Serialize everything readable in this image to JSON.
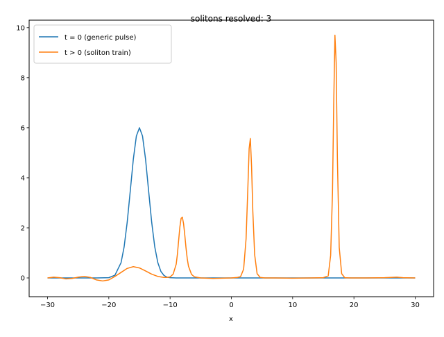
{
  "chart_data": {
    "type": "line",
    "title": "solitons resolved: 3",
    "xlabel": "x",
    "ylabel": "",
    "xlim": [
      -33,
      33
    ],
    "ylim": [
      -0.75,
      10.3
    ],
    "xticks": [
      -30,
      -20,
      -10,
      0,
      10,
      20,
      30
    ],
    "yticks": [
      0,
      2,
      4,
      6,
      8,
      10
    ],
    "grid": false,
    "legend": {
      "position": "top-left"
    },
    "series": [
      {
        "name": "t = 0 (generic pulse)",
        "color": "#1f77b4",
        "x": [
          -30,
          -25,
          -22,
          -20,
          -19,
          -18,
          -17.5,
          -17,
          -16.5,
          -16,
          -15.5,
          -15,
          -14.5,
          -14,
          -13.5,
          -13,
          -12.5,
          -12,
          -11.5,
          -11,
          -10.5,
          -10,
          -9,
          -8,
          -5,
          0,
          10,
          20,
          30
        ],
        "y": [
          0,
          0,
          0,
          0.01,
          0.11,
          0.61,
          1.24,
          2.22,
          3.47,
          4.74,
          5.67,
          6.0,
          5.67,
          4.74,
          3.47,
          2.22,
          1.24,
          0.61,
          0.26,
          0.1,
          0.03,
          0.01,
          0,
          0,
          0,
          0,
          0,
          0,
          0
        ]
      },
      {
        "name": "t > 0 (soliton train)",
        "color": "#ff7f0e",
        "x": [
          -30,
          -29,
          -28,
          -27,
          -26,
          -25,
          -24,
          -23,
          -22,
          -21,
          -20,
          -19,
          -18,
          -17,
          -16,
          -15,
          -14,
          -13,
          -12,
          -11,
          -10.5,
          -10,
          -9.5,
          -9,
          -8.8,
          -8.6,
          -8.4,
          -8.2,
          -8,
          -7.8,
          -7.6,
          -7.4,
          -7.2,
          -7,
          -6.5,
          -6,
          -5,
          -3,
          0,
          1,
          1.5,
          2,
          2.4,
          2.7,
          2.9,
          3.1,
          3.3,
          3.5,
          3.8,
          4.2,
          4.7,
          5.5,
          7,
          10,
          13,
          15,
          15.8,
          16.2,
          16.5,
          16.7,
          16.9,
          17.1,
          17.3,
          17.6,
          18,
          18.5,
          19.5,
          22,
          25,
          27,
          28,
          30
        ],
        "y": [
          0,
          0.03,
          0.01,
          -0.04,
          -0.02,
          0.03,
          0.06,
          0.02,
          -0.08,
          -0.12,
          -0.08,
          0.06,
          0.22,
          0.38,
          0.45,
          0.4,
          0.28,
          0.15,
          0.06,
          0.02,
          0.02,
          0.04,
          0.15,
          0.55,
          0.96,
          1.51,
          2.04,
          2.38,
          2.43,
          2.17,
          1.71,
          1.2,
          0.77,
          0.47,
          0.14,
          0.04,
          0,
          -0.02,
          0,
          0.02,
          0.05,
          0.35,
          1.56,
          3.66,
          5.17,
          5.57,
          4.44,
          2.67,
          0.93,
          0.17,
          0.02,
          0,
          0,
          -0.01,
          0,
          0.01,
          0.08,
          0.9,
          3.4,
          6.9,
          9.7,
          8.6,
          4.8,
          1.22,
          0.17,
          0.01,
          0,
          0,
          0.01,
          0.03,
          0.01,
          0
        ]
      }
    ]
  }
}
